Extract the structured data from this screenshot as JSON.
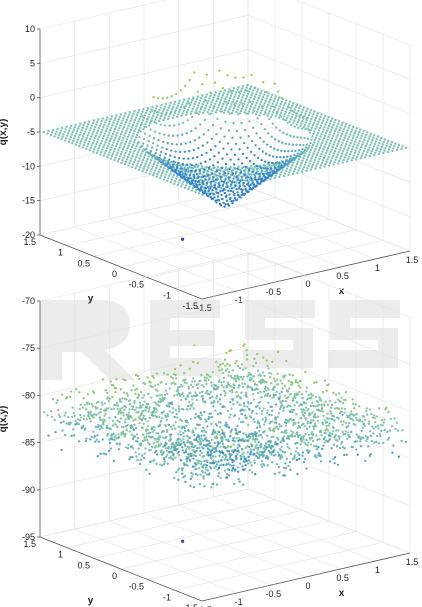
{
  "chart_data": [
    {
      "type": "scatter",
      "subtype": "3d-scatter",
      "xlabel": "x",
      "ylabel": "y",
      "zlabel": "q(x,y)",
      "x_range": [
        -1.5,
        1.5
      ],
      "y_range": [
        -1.5,
        1.5
      ],
      "z_range": [
        -20,
        10
      ],
      "x_ticks": [
        "-1.5",
        "-1",
        "-0.5",
        "0",
        "0.5",
        "1",
        "1.5"
      ],
      "y_ticks": [
        "-1.5",
        "-1",
        "-0.5",
        "0",
        "0.5",
        "1",
        "1.5"
      ],
      "z_ticks": [
        "-20",
        "-15",
        "-10",
        "-5",
        "0",
        "5",
        "10"
      ],
      "grid": true,
      "colormap": [
        "#2f7fd0",
        "#7fc7b0",
        "#9acd32",
        "#e8d740"
      ],
      "surface": {
        "plane_z": -5,
        "bowl_radius": 1.0,
        "bowl_depth": -10,
        "rim_peak": 7,
        "noise": 0
      },
      "outlier": {
        "x": -0.3,
        "y": 0.4,
        "z": -20
      }
    },
    {
      "type": "scatter",
      "subtype": "3d-scatter",
      "xlabel": "x",
      "ylabel": "y",
      "zlabel": "q(x,y)",
      "x_range": [
        -1.5,
        1.5
      ],
      "y_range": [
        -1.5,
        1.5
      ],
      "z_range": [
        -95,
        -70
      ],
      "x_ticks": [
        "-1.5",
        "-1",
        "-0.5",
        "0",
        "0.5",
        "1",
        "1.5"
      ],
      "y_ticks": [
        "-1.5",
        "-1",
        "-0.5",
        "0",
        "0.5",
        "1",
        "1.5"
      ],
      "z_ticks": [
        "-95",
        "-90",
        "-85",
        "-80",
        "-75",
        "-70"
      ],
      "grid": true,
      "colormap": [
        "#2f7fd0",
        "#7fc7b0",
        "#9acd32",
        "#e8d740"
      ],
      "surface": {
        "plane_z": -82,
        "bowl_radius": 1.0,
        "bowl_depth": -3,
        "rim_peak": 4,
        "noise": 2.2
      },
      "outlier": {
        "x": -0.3,
        "y": 0.4,
        "z": -95
      }
    }
  ]
}
